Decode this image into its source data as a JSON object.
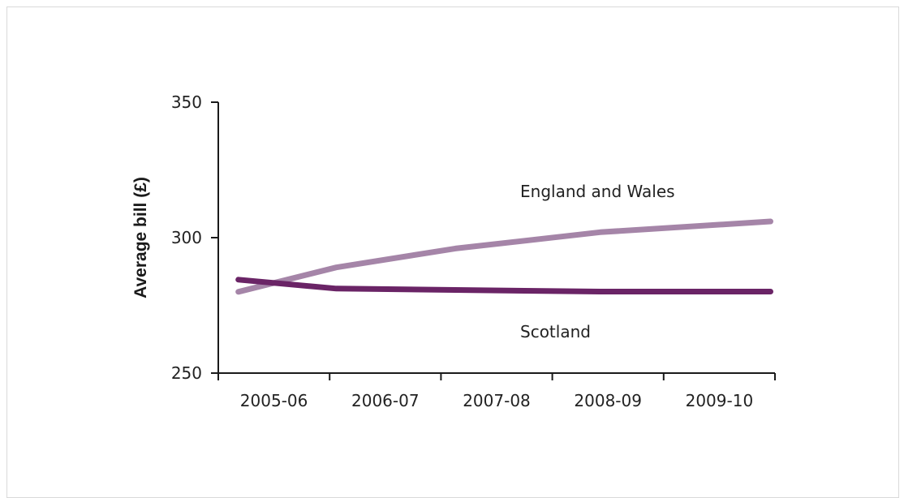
{
  "colors": {
    "england_wales": "#a585a8",
    "scotland": "#6a2466",
    "axis": "#1a1a1a"
  },
  "chart_data": {
    "type": "line",
    "ylabel": "Average bill (£)",
    "xlabel": "",
    "ylim": [
      250,
      350
    ],
    "yticks": [
      250,
      300,
      350
    ],
    "categories": [
      "2005-06",
      "2006-07",
      "2007-08",
      "2008-09",
      "2009-10"
    ],
    "grid": false,
    "series": [
      {
        "name": "England and Wales",
        "x": [
          0,
          0.88,
          1.95,
          3.25,
          4.78
        ],
        "values": [
          280,
          289,
          296,
          302,
          306
        ]
      },
      {
        "name": "Scotland",
        "x": [
          0,
          0.88,
          1.95,
          3.25,
          4.78
        ],
        "values": [
          284.5,
          281.2,
          280.7,
          280.1,
          280.1
        ]
      }
    ]
  }
}
